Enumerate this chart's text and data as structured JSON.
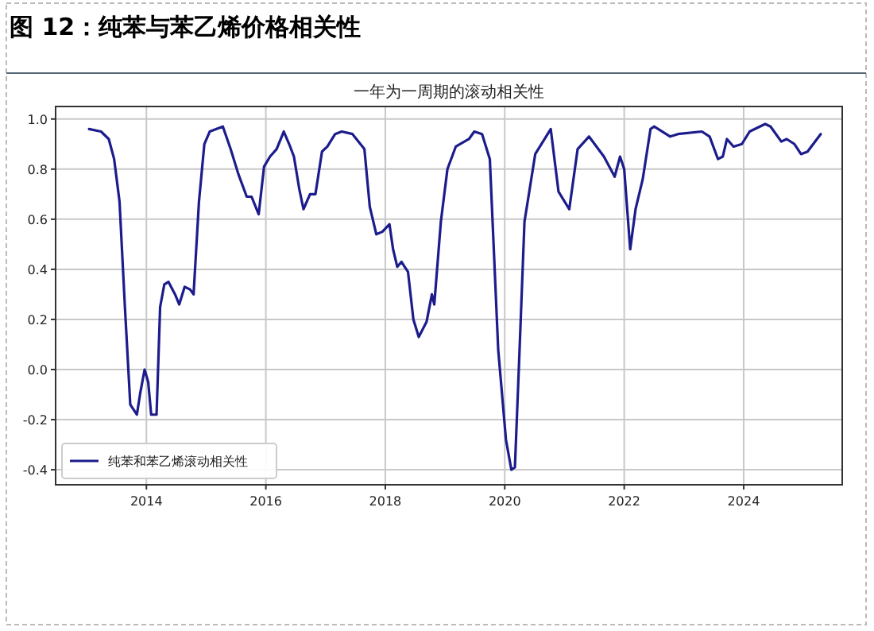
{
  "chart_data": {
    "type": "line",
    "title": "图 12：纯苯与苯乙烯价格相关性",
    "subtitle": "一年为一周期的滚动相关性",
    "x": [
      2013.04,
      2013.24,
      2013.37,
      2013.46,
      2013.55,
      2013.64,
      2013.73,
      2013.84,
      2013.9,
      2013.97,
      2014.03,
      2014.08,
      2014.17,
      2014.23,
      2014.3,
      2014.37,
      2014.48,
      2014.55,
      2014.64,
      2014.73,
      2014.79,
      2014.88,
      2014.97,
      2015.06,
      2015.28,
      2015.41,
      2015.54,
      2015.68,
      2015.76,
      2015.88,
      2015.97,
      2016.07,
      2016.18,
      2016.3,
      2016.39,
      2016.47,
      2016.56,
      2016.63,
      2016.74,
      2016.83,
      2016.94,
      2017.03,
      2017.16,
      2017.27,
      2017.45,
      2017.65,
      2017.74,
      2017.85,
      2017.95,
      2018.07,
      2018.13,
      2018.2,
      2018.27,
      2018.38,
      2018.47,
      2018.56,
      2018.69,
      2018.78,
      2018.82,
      2018.93,
      2019.04,
      2019.18,
      2019.4,
      2019.49,
      2019.62,
      2019.75,
      2019.89,
      2020.02,
      2020.11,
      2020.17,
      2020.24,
      2020.33,
      2020.51,
      2020.77,
      2020.9,
      2021.08,
      2021.22,
      2021.41,
      2021.66,
      2021.84,
      2021.93,
      2022.0,
      2022.1,
      2022.19,
      2022.31,
      2022.44,
      2022.5,
      2022.77,
      2022.9,
      2023.3,
      2023.43,
      2023.57,
      2023.65,
      2023.72,
      2023.83,
      2023.97,
      2024.1,
      2024.36,
      2024.45,
      2024.63,
      2024.72,
      2024.85,
      2024.96,
      2025.07,
      2025.29
    ],
    "series": [
      {
        "name": "纯苯和苯乙烯滚动相关性",
        "color": "#1c1c8c",
        "values": [
          0.96,
          0.95,
          0.92,
          0.84,
          0.67,
          0.25,
          -0.14,
          -0.18,
          -0.09,
          0.0,
          -0.05,
          -0.18,
          -0.18,
          0.25,
          0.34,
          0.35,
          0.3,
          0.26,
          0.33,
          0.32,
          0.3,
          0.67,
          0.9,
          0.95,
          0.97,
          0.88,
          0.78,
          0.69,
          0.69,
          0.62,
          0.81,
          0.85,
          0.88,
          0.95,
          0.9,
          0.85,
          0.72,
          0.64,
          0.7,
          0.7,
          0.87,
          0.89,
          0.94,
          0.95,
          0.94,
          0.88,
          0.65,
          0.54,
          0.55,
          0.58,
          0.48,
          0.41,
          0.43,
          0.39,
          0.2,
          0.13,
          0.19,
          0.3,
          0.26,
          0.59,
          0.8,
          0.89,
          0.92,
          0.95,
          0.94,
          0.84,
          0.08,
          -0.28,
          -0.4,
          -0.39,
          0.03,
          0.59,
          0.86,
          0.96,
          0.71,
          0.64,
          0.88,
          0.93,
          0.85,
          0.77,
          0.85,
          0.8,
          0.48,
          0.64,
          0.76,
          0.96,
          0.97,
          0.93,
          0.94,
          0.95,
          0.93,
          0.84,
          0.85,
          0.92,
          0.89,
          0.9,
          0.95,
          0.98,
          0.97,
          0.91,
          0.92,
          0.9,
          0.86,
          0.87,
          0.94
        ]
      }
    ],
    "xlim": [
      2012.48,
      2025.65
    ],
    "ylim": [
      -0.46,
      1.05
    ],
    "xticks": [
      2014,
      2016,
      2018,
      2020,
      2022,
      2024
    ],
    "yticks": [
      {
        "value": -0.4,
        "label": "-0.4"
      },
      {
        "value": -0.2,
        "label": "-0.2"
      },
      {
        "value": 0,
        "label": "0.0"
      },
      {
        "value": 0.2,
        "label": "0.2"
      },
      {
        "value": 0.4,
        "label": "0.4"
      },
      {
        "value": 0.6,
        "label": "0.6"
      },
      {
        "value": 0.8,
        "label": "0.8"
      },
      {
        "value": 1,
        "label": "1.0"
      }
    ],
    "grid": true,
    "legend": "bottom left"
  }
}
